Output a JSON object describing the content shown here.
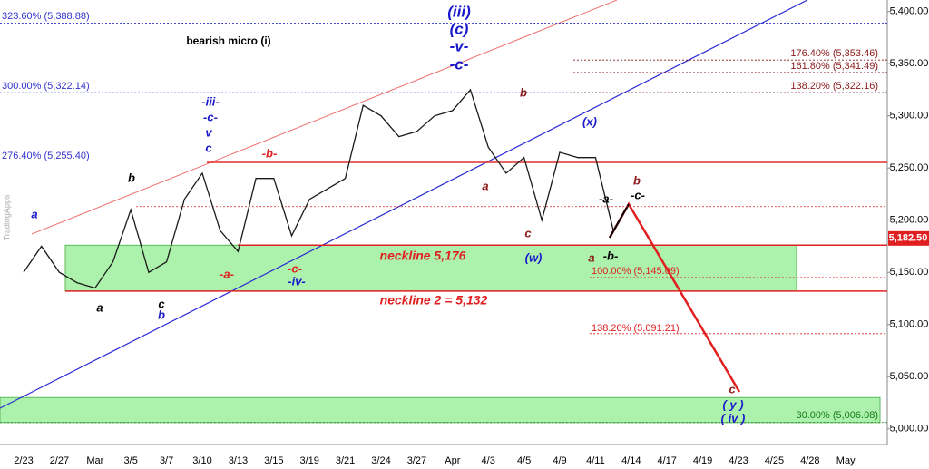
{
  "chart_data": {
    "type": "line",
    "categories": [
      "2/23",
      null,
      "2/27",
      null,
      "Mar",
      null,
      "3/5",
      null,
      "3/7",
      null,
      "3/10",
      null,
      "3/13",
      null,
      "3/15",
      null,
      "3/19",
      null,
      "3/21",
      null,
      "3/24",
      null,
      "3/27",
      null,
      "Apr",
      null,
      "4/3",
      null,
      "4/5",
      null,
      "4/9",
      null,
      "4/11",
      null,
      "4/14",
      null,
      "4/17",
      null,
      "4/19",
      null,
      "4/23",
      null,
      "4/25",
      null,
      "4/28",
      null,
      "May"
    ],
    "values": [
      5150,
      5175,
      5150,
      5140,
      5135,
      5160,
      5210,
      5150,
      5160,
      5220,
      5245,
      5190,
      5170,
      5240,
      5240,
      5185,
      5220,
      5230,
      5240,
      5310,
      5300,
      5280,
      5285,
      5300,
      5305,
      5325,
      5270,
      5245,
      5260,
      5200,
      5265,
      5260,
      5260,
      5190,
      null,
      null,
      null,
      null,
      null,
      null,
      null,
      null,
      null,
      null,
      null,
      null,
      null
    ],
    "color": "#1a1a1a",
    "ylim": [
      4985,
      5411
    ],
    "yticks": [
      {
        "value": 5000,
        "label": "5,000.00"
      },
      {
        "value": 5050,
        "label": "5,050.00"
      },
      {
        "value": 5100,
        "label": "5,100.00"
      },
      {
        "value": 5150,
        "label": "5,150.00"
      },
      {
        "value": 5200,
        "label": "5,200.00"
      },
      {
        "value": 5250,
        "label": "5,250.00"
      },
      {
        "value": 5300,
        "label": "5,300.00"
      },
      {
        "value": 5350,
        "label": "5,350.00"
      },
      {
        "value": 5400,
        "label": "5,400.00"
      }
    ],
    "last_price": {
      "value": 5182.5,
      "label": "5,182.50"
    },
    "zones": [
      {
        "from": 5132,
        "to": 5176
      },
      {
        "from": 5006,
        "to": 5030
      }
    ],
    "levels": [
      {
        "value": 5388.88,
        "label": "323.60% (5,388.88)",
        "color": "#3333cc"
      },
      {
        "value": 5322.14,
        "label": "300.00% (5,322.14)",
        "color": "#3333cc"
      },
      {
        "value": 5255.4,
        "label": "276.40% (5,255.40)",
        "color": "#3333cc"
      },
      {
        "value": 5353.46,
        "label": "176.40% (5,353.46)",
        "color": "#8b1a1a"
      },
      {
        "value": 5341.49,
        "label": "161.80% (5,341.49)",
        "color": "#8b1a1a"
      },
      {
        "value": 5322.16,
        "label": "138.20% (5,322.16)",
        "color": "#8b1a1a"
      },
      {
        "value": 5145.09,
        "label": "100.00% (5,145.09)",
        "color": "#e02020"
      },
      {
        "value": 5091.21,
        "label": "138.20% (5,091.21)",
        "color": "#e02020"
      },
      {
        "value": 5006.08,
        "label": "30.00% (5,006.08)",
        "color": "#1a7a1a"
      },
      {
        "value": 5213,
        "color": "#e02020"
      }
    ],
    "necklines": [
      {
        "value": 5176,
        "label": "neckline 5,176"
      },
      {
        "value": 5132,
        "label": "neckline 2 = 5,132"
      }
    ],
    "annotations": [
      {
        "text": "(iii)",
        "color": "#1a1acc"
      },
      {
        "text": "(c)",
        "color": "#1a1acc"
      },
      {
        "text": "-v-",
        "color": "#1a1acc"
      },
      {
        "text": "-c-",
        "color": "#1a1acc"
      },
      {
        "text": "bearish micro (i)",
        "color": "#000"
      },
      {
        "text": "a",
        "color": "#1a1acc"
      },
      {
        "text": "b",
        "color": "#000"
      },
      {
        "text": "a",
        "color": "#000"
      },
      {
        "text": "c",
        "color": "#000"
      },
      {
        "text": "b",
        "color": "#1a1acc"
      },
      {
        "text": "-iii-",
        "color": "#1a1acc"
      },
      {
        "text": "-c-",
        "color": "#1a1acc"
      },
      {
        "text": "v",
        "color": "#1a1acc"
      },
      {
        "text": "c",
        "color": "#1a1acc"
      },
      {
        "text": "-b-",
        "color": "#e02020"
      },
      {
        "text": "-a-",
        "color": "#e02020"
      },
      {
        "text": "-c-",
        "color": "#e02020"
      },
      {
        "text": "-iv-",
        "color": "#1a1acc"
      },
      {
        "text": "b",
        "color": "#8b1a1a"
      },
      {
        "text": "a",
        "color": "#8b1a1a"
      },
      {
        "text": "c",
        "color": "#8b1a1a"
      },
      {
        "text": "(w)",
        "color": "#1a1acc"
      },
      {
        "text": "(x)",
        "color": "#1a1acc"
      },
      {
        "text": "a",
        "color": "#8b1a1a"
      },
      {
        "text": "-b-",
        "color": "#000"
      },
      {
        "text": "-a-",
        "color": "#000"
      },
      {
        "text": "-c-",
        "color": "#000"
      },
      {
        "text": "b",
        "color": "#8b1a1a"
      },
      {
        "text": "c",
        "color": "#8b1a1a"
      },
      {
        "text": "( y )",
        "color": "#1a1acc"
      },
      {
        "text": "( iv )",
        "color": "#1a1acc"
      }
    ],
    "watermark": "TradingApps"
  }
}
